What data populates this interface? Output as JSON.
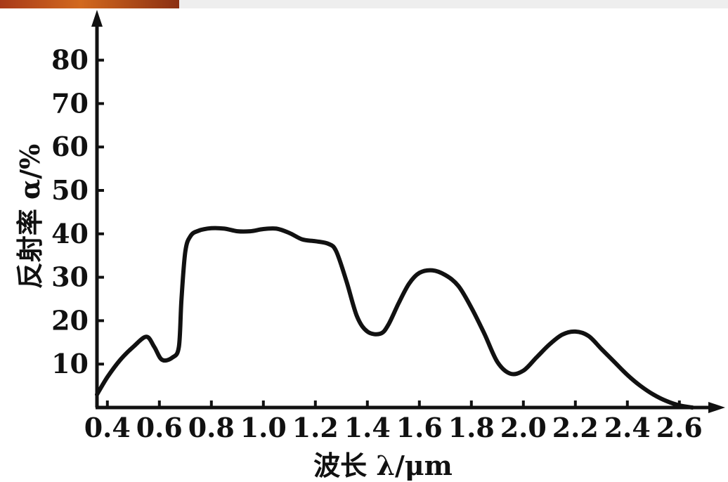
{
  "chart_data": {
    "type": "line",
    "xlabel": "波长 λ/μm",
    "ylabel": "反射率 α/%",
    "xlim": [
      0.36,
      2.7
    ],
    "ylim": [
      0,
      90
    ],
    "xticks": [
      0.4,
      0.6,
      0.8,
      1.0,
      1.2,
      1.4,
      1.6,
      1.8,
      2.0,
      2.2,
      2.4,
      2.6
    ],
    "xtick_labels": [
      "0.4",
      "0.6",
      "0.8",
      "1.0",
      "1.2",
      "1.4",
      "1.6",
      "1.8",
      "2.0",
      "2.2",
      "2.4",
      "2.6"
    ],
    "yticks": [
      10,
      20,
      30,
      40,
      50,
      60,
      70,
      80
    ],
    "ytick_labels": [
      "10",
      "20",
      "30",
      "40",
      "50",
      "60",
      "70",
      "80"
    ],
    "grid": false,
    "series": [
      {
        "points": [
          [
            0.36,
            3
          ],
          [
            0.4,
            7
          ],
          [
            0.45,
            11
          ],
          [
            0.5,
            14
          ],
          [
            0.55,
            16.3
          ],
          [
            0.58,
            14
          ],
          [
            0.61,
            11
          ],
          [
            0.65,
            11.5
          ],
          [
            0.675,
            14
          ],
          [
            0.685,
            25
          ],
          [
            0.7,
            36
          ],
          [
            0.72,
            39.5
          ],
          [
            0.75,
            40.7
          ],
          [
            0.8,
            41.3
          ],
          [
            0.85,
            41.2
          ],
          [
            0.9,
            40.6
          ],
          [
            0.95,
            40.6
          ],
          [
            1.0,
            41.1
          ],
          [
            1.05,
            41.2
          ],
          [
            1.1,
            40.2
          ],
          [
            1.15,
            38.7
          ],
          [
            1.2,
            38.3
          ],
          [
            1.25,
            37.7
          ],
          [
            1.28,
            36
          ],
          [
            1.32,
            29
          ],
          [
            1.36,
            21
          ],
          [
            1.4,
            17.5
          ],
          [
            1.45,
            17
          ],
          [
            1.48,
            19
          ],
          [
            1.52,
            24
          ],
          [
            1.56,
            28.5
          ],
          [
            1.6,
            31
          ],
          [
            1.65,
            31.6
          ],
          [
            1.7,
            30.5
          ],
          [
            1.75,
            28
          ],
          [
            1.8,
            23
          ],
          [
            1.85,
            17
          ],
          [
            1.9,
            10.5
          ],
          [
            1.95,
            7.8
          ],
          [
            2.0,
            8.5
          ],
          [
            2.05,
            11.5
          ],
          [
            2.1,
            14.5
          ],
          [
            2.15,
            16.8
          ],
          [
            2.2,
            17.5
          ],
          [
            2.25,
            16.5
          ],
          [
            2.3,
            13.5
          ],
          [
            2.35,
            10.5
          ],
          [
            2.4,
            7.5
          ],
          [
            2.45,
            5
          ],
          [
            2.5,
            3
          ],
          [
            2.55,
            1.5
          ],
          [
            2.6,
            0.5
          ],
          [
            2.65,
            0
          ]
        ]
      }
    ]
  }
}
